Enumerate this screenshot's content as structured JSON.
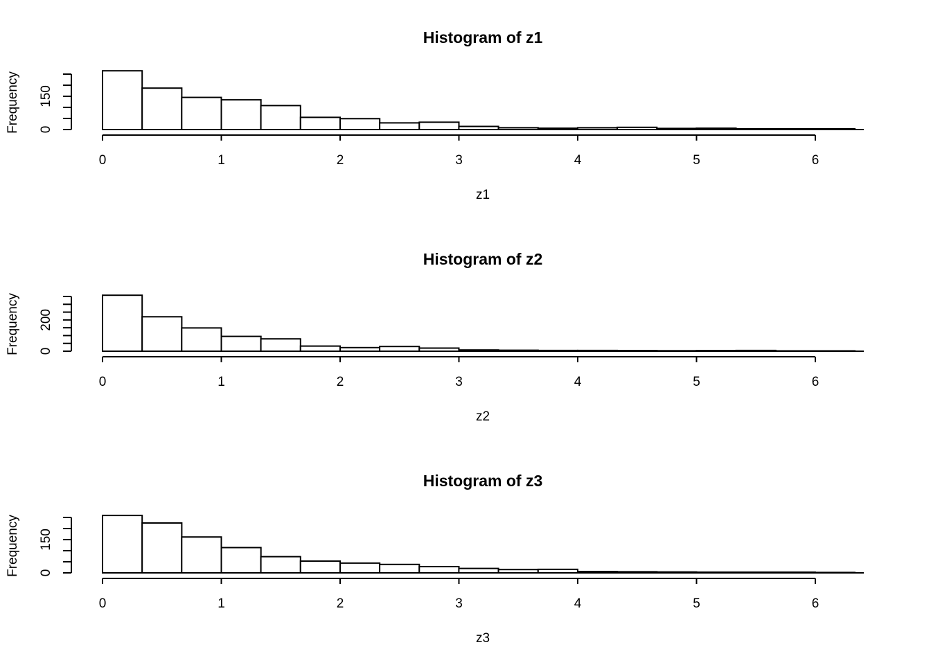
{
  "chart_data": [
    {
      "type": "bar",
      "title": "Histogram of z1",
      "xlabel": "z1",
      "ylabel": "Frequency",
      "x_ticks": [
        0,
        1,
        2,
        3,
        4,
        5,
        6
      ],
      "y_ticks": [
        0,
        150
      ],
      "y_minor_ticks": [
        0,
        50,
        100,
        150,
        200,
        250
      ],
      "bin_width": 0.3333,
      "xlim": [
        0,
        6.4
      ],
      "ylim": [
        0,
        250
      ],
      "values": [
        265,
        187,
        145,
        134,
        108,
        55,
        49,
        30,
        33,
        14,
        8,
        6,
        8,
        10,
        5,
        6,
        3,
        3,
        3
      ]
    },
    {
      "type": "bar",
      "title": "Histogram of z2",
      "xlabel": "z2",
      "ylabel": "Frequency",
      "x_ticks": [
        0,
        1,
        2,
        3,
        4,
        5,
        6
      ],
      "y_ticks": [
        0,
        200
      ],
      "y_minor_ticks": [
        0,
        50,
        100,
        150,
        200,
        250,
        300,
        350
      ],
      "bin_width": 0.3333,
      "xlim": [
        0,
        6.4
      ],
      "ylim": [
        0,
        350
      ],
      "values": [
        358,
        220,
        149,
        95,
        79,
        33,
        23,
        30,
        20,
        8,
        6,
        5,
        5,
        4,
        3,
        4,
        5,
        1,
        1
      ]
    },
    {
      "type": "bar",
      "title": "Histogram of z3",
      "xlabel": "z3",
      "ylabel": "Frequency",
      "x_ticks": [
        0,
        1,
        2,
        3,
        4,
        5,
        6
      ],
      "y_ticks": [
        0,
        150
      ],
      "y_minor_ticks": [
        0,
        50,
        100,
        150,
        200,
        250
      ],
      "bin_width": 0.3333,
      "xlim": [
        0,
        6.4
      ],
      "ylim": [
        0,
        250
      ],
      "values": [
        259,
        225,
        162,
        114,
        73,
        53,
        44,
        38,
        28,
        20,
        15,
        16,
        6,
        5,
        4,
        3,
        3,
        3,
        2
      ]
    }
  ]
}
